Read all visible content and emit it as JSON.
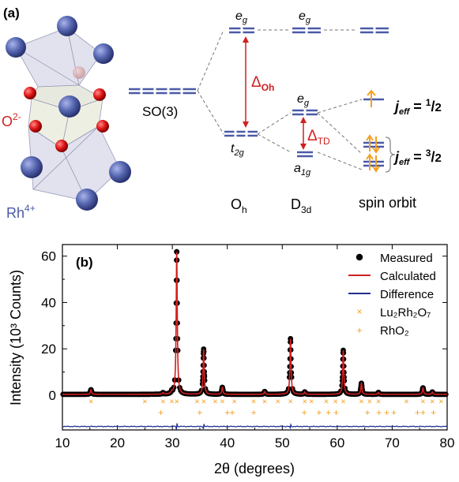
{
  "panel_a": {
    "label": "(a)",
    "ion_label_o": "O",
    "ion_label_o_sup": "2-",
    "ion_label_rh": "Rh",
    "ion_label_rh_sup": "4+",
    "so3_label": "SO(3)",
    "eg_label": "e",
    "eg_sub": "g",
    "t2g_label": "t",
    "t2g_sub": "2g",
    "a1g_label": "a",
    "a1g_sub": "1g",
    "delta": "Δ",
    "delta_oh_sub": "Oh",
    "delta_td_sub": "TD",
    "col_oh": "O",
    "col_oh_sub": "h",
    "col_d3d": "D",
    "col_d3d_sub": "3d",
    "col_so": "spin orbit",
    "jeff_j": "j",
    "jeff_sub": "eff",
    "jeff_half": "= 1/2",
    "jeff_half_num": "1",
    "jeff_half_den": "2",
    "jeff_three_num": "3",
    "jeff_three_den": "2",
    "colors": {
      "level": "#4a5aa8",
      "red": "#d11f1f",
      "orange": "#f4a020",
      "dash": "#777777"
    }
  },
  "chart_data": {
    "type": "scatter",
    "panel_label": "(b)",
    "xlabel": "2θ (degrees)",
    "ylabel": "Intensity (10³ Counts)",
    "xlim": [
      10,
      80
    ],
    "ylim": [
      -15,
      65
    ],
    "xticks": [
      "10",
      "20",
      "30",
      "40",
      "50",
      "60",
      "70",
      "80"
    ],
    "yticks": [
      "0",
      "20",
      "40",
      "60"
    ],
    "xtick_values": [
      10,
      20,
      30,
      40,
      50,
      60,
      70,
      80
    ],
    "ytick_values": [
      0,
      20,
      40,
      60
    ],
    "peaks": [
      {
        "x": 15.2,
        "y": 2.0
      },
      {
        "x": 28.3,
        "y": 0.6
      },
      {
        "x": 29.9,
        "y": 0.9
      },
      {
        "x": 30.8,
        "y": 61.5
      },
      {
        "x": 35.7,
        "y": 19.5
      },
      {
        "x": 39.1,
        "y": 3.0
      },
      {
        "x": 46.8,
        "y": 1.2
      },
      {
        "x": 51.5,
        "y": 24.0
      },
      {
        "x": 54.1,
        "y": 1.0
      },
      {
        "x": 61.1,
        "y": 19.0
      },
      {
        "x": 64.4,
        "y": 4.8
      },
      {
        "x": 67.5,
        "y": 0.8
      },
      {
        "x": 75.6,
        "y": 2.8
      },
      {
        "x": 77.3,
        "y": 1.0
      }
    ],
    "difference_offset": -13.5,
    "difference_spikes": [
      {
        "x": 30.8,
        "amp": 1.6
      },
      {
        "x": 35.7,
        "amp": 1.2
      },
      {
        "x": 51.5,
        "amp": 0.8
      }
    ],
    "series": [
      {
        "name": "Measured",
        "style": "filled-circle",
        "color": "#000000"
      },
      {
        "name": "Calculated",
        "style": "line",
        "color": "#d11f1f"
      },
      {
        "name": "Difference",
        "style": "line",
        "color": "#1f2f8f"
      },
      {
        "name": "Lu₂Rh₂O₇",
        "style": "x-marker",
        "color": "#f4a020",
        "y": -2.5,
        "x": [
          15.2,
          25.0,
          28.3,
          29.9,
          30.8,
          34.5,
          35.7,
          37.8,
          39.1,
          41.3,
          44.8,
          46.8,
          49.2,
          51.5,
          54.1,
          55.3,
          58.0,
          59.7,
          61.1,
          64.4,
          65.9,
          67.5,
          72.6,
          75.6,
          77.3,
          78.9
        ]
      },
      {
        "name": "RhO₂",
        "style": "plus-marker",
        "color": "#f4a020",
        "y": -7.5,
        "x": [
          27.9,
          35.0,
          40.0,
          40.9,
          44.8,
          54.0,
          56.7,
          58.4,
          59.8,
          65.5,
          67.6,
          69.0,
          70.3,
          74.6,
          75.6,
          77.5
        ]
      }
    ],
    "legend_placement": "top-right"
  }
}
